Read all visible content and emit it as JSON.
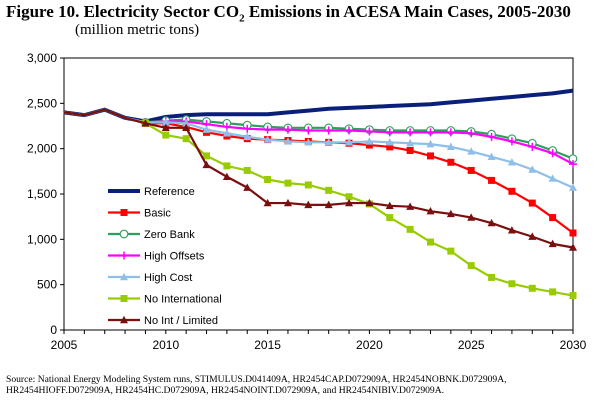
{
  "figure": {
    "title_prefix": "Figure 10.  Electricity Sector CO",
    "title_sub": "2",
    "title_suffix": " Emissions in ACESA Main Cases, 2005-2030",
    "subtitle": "(million metric tons)",
    "source": "Source:  National Energy Modeling System runs, STIMULUS.D041409A, HR2454CAP.D072909A, HR2454NOBNK.D072909A, HR2454HIOFF.D072909A, HR2454HC.D072909A, HR2454NOINT.D072909A, and HR2454NIBIV.D072909A."
  },
  "chart_data": {
    "type": "line",
    "title": "Figure 10. Electricity Sector CO2 Emissions in ACESA Main Cases, 2005-2030",
    "subtitle": "(million metric tons)",
    "xlabel": "",
    "ylabel": "",
    "xlim": [
      2005,
      2030
    ],
    "ylim": [
      0,
      3000
    ],
    "x_ticks": [
      2005,
      2010,
      2015,
      2020,
      2025,
      2030
    ],
    "x_tick_labels": [
      "2005",
      "2010",
      "2015",
      "2020",
      "2025",
      "2030"
    ],
    "y_ticks": [
      0,
      500,
      1000,
      1500,
      2000,
      2500,
      3000
    ],
    "y_tick_labels": [
      "0",
      "500",
      "1,000",
      "1,500",
      "2,000",
      "2,500",
      "3,000"
    ],
    "grid": false,
    "legend_position": "lower-left",
    "x": [
      2005,
      2006,
      2007,
      2008,
      2009,
      2010,
      2011,
      2012,
      2013,
      2014,
      2015,
      2016,
      2017,
      2018,
      2019,
      2020,
      2021,
      2022,
      2023,
      2024,
      2025,
      2026,
      2027,
      2028,
      2029,
      2030
    ],
    "series": [
      {
        "name": "Reference",
        "color": "#0a1f7a",
        "marker": "none",
        "values": [
          2400,
          2370,
          2430,
          2340,
          2300,
          2350,
          2370,
          2380,
          2380,
          2380,
          2380,
          2400,
          2420,
          2440,
          2450,
          2460,
          2470,
          2480,
          2490,
          2510,
          2530,
          2550,
          2570,
          2590,
          2610,
          2640
        ]
      },
      {
        "name": "Basic",
        "color": "#ff0000",
        "marker": "square",
        "values": [
          2400,
          2370,
          2430,
          2340,
          2280,
          2280,
          2240,
          2180,
          2140,
          2110,
          2100,
          2090,
          2080,
          2070,
          2060,
          2040,
          2020,
          1980,
          1920,
          1850,
          1760,
          1650,
          1530,
          1400,
          1240,
          1070
        ]
      },
      {
        "name": "Zero Bank",
        "color": "#2e9e5e",
        "marker": "circle-open",
        "values": [
          2400,
          2370,
          2430,
          2340,
          2290,
          2310,
          2320,
          2300,
          2280,
          2260,
          2240,
          2230,
          2230,
          2230,
          2220,
          2210,
          2200,
          2200,
          2200,
          2200,
          2190,
          2160,
          2110,
          2060,
          1980,
          1890
        ]
      },
      {
        "name": "High Offsets",
        "color": "#ff00ff",
        "marker": "plus",
        "values": [
          2400,
          2370,
          2430,
          2340,
          2290,
          2300,
          2300,
          2270,
          2240,
          2220,
          2210,
          2210,
          2200,
          2200,
          2200,
          2190,
          2180,
          2180,
          2180,
          2180,
          2170,
          2130,
          2080,
          2020,
          1950,
          1830
        ]
      },
      {
        "name": "High Cost",
        "color": "#8fbfe8",
        "marker": "triangle",
        "values": [
          2400,
          2370,
          2430,
          2340,
          2290,
          2290,
          2280,
          2210,
          2170,
          2130,
          2100,
          2080,
          2070,
          2070,
          2070,
          2080,
          2070,
          2060,
          2050,
          2020,
          1970,
          1910,
          1850,
          1770,
          1670,
          1570
        ]
      },
      {
        "name": "No International",
        "color": "#99cc00",
        "marker": "square",
        "values": [
          2400,
          2370,
          2430,
          2340,
          2280,
          2150,
          2110,
          1920,
          1810,
          1760,
          1660,
          1620,
          1600,
          1540,
          1470,
          1390,
          1240,
          1110,
          970,
          870,
          710,
          580,
          510,
          460,
          420,
          380
        ]
      },
      {
        "name": "No Int / Limited",
        "color": "#7a0f0f",
        "marker": "triangle",
        "values": [
          2400,
          2370,
          2430,
          2340,
          2280,
          2230,
          2230,
          1820,
          1690,
          1570,
          1400,
          1400,
          1380,
          1380,
          1400,
          1400,
          1370,
          1360,
          1310,
          1280,
          1240,
          1180,
          1100,
          1030,
          950,
          910
        ]
      }
    ]
  }
}
